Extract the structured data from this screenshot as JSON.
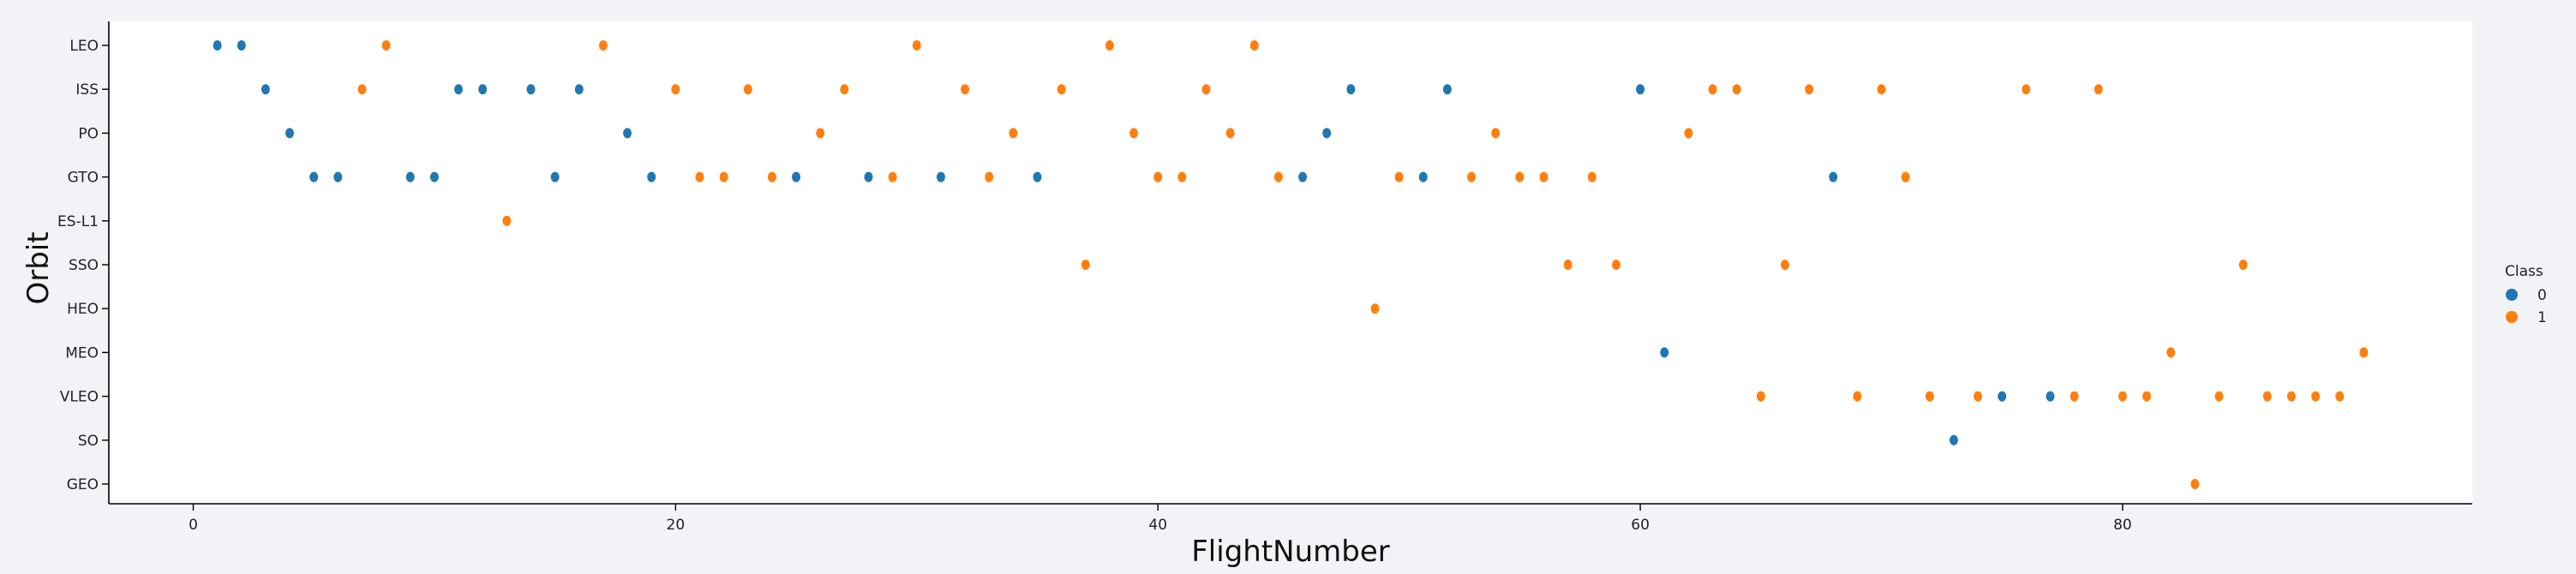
{
  "chart_data": {
    "type": "scatter",
    "title": "",
    "xlabel": "FlightNumber",
    "ylabel": "Orbit",
    "xlim": [
      -3.5,
      94.5
    ],
    "x_ticks": [
      0,
      20,
      40,
      60,
      80
    ],
    "y_categories": [
      "LEO",
      "ISS",
      "PO",
      "GTO",
      "ES-L1",
      "SSO",
      "HEO",
      "MEO",
      "VLEO",
      "SO",
      "GEO"
    ],
    "legend": {
      "title": "Class",
      "placement": "right",
      "entries": [
        {
          "label": "0",
          "color": "#1f77b4"
        },
        {
          "label": "1",
          "color": "#ff7f0e"
        }
      ]
    },
    "grid": false,
    "series": [
      {
        "name": "0",
        "color": "#1f77b4",
        "points": [
          [
            1,
            "LEO"
          ],
          [
            2,
            "LEO"
          ],
          [
            3,
            "ISS"
          ],
          [
            4,
            "PO"
          ],
          [
            5,
            "GTO"
          ],
          [
            6,
            "GTO"
          ],
          [
            9,
            "GTO"
          ],
          [
            10,
            "GTO"
          ],
          [
            11,
            "ISS"
          ],
          [
            12,
            "ISS"
          ],
          [
            14,
            "ISS"
          ],
          [
            15,
            "GTO"
          ],
          [
            16,
            "ISS"
          ],
          [
            18,
            "PO"
          ],
          [
            19,
            "GTO"
          ],
          [
            25,
            "GTO"
          ],
          [
            28,
            "GTO"
          ],
          [
            31,
            "GTO"
          ],
          [
            35,
            "GTO"
          ],
          [
            46,
            "GTO"
          ],
          [
            47,
            "PO"
          ],
          [
            48,
            "ISS"
          ],
          [
            51,
            "GTO"
          ],
          [
            52,
            "ISS"
          ],
          [
            60,
            "ISS"
          ],
          [
            61,
            "MEO"
          ],
          [
            68,
            "GTO"
          ],
          [
            73,
            "SO"
          ],
          [
            75,
            "VLEO"
          ],
          [
            77,
            "VLEO"
          ]
        ]
      },
      {
        "name": "1",
        "color": "#ff7f0e",
        "points": [
          [
            7,
            "ISS"
          ],
          [
            8,
            "LEO"
          ],
          [
            13,
            "ES-L1"
          ],
          [
            17,
            "LEO"
          ],
          [
            20,
            "ISS"
          ],
          [
            21,
            "GTO"
          ],
          [
            22,
            "GTO"
          ],
          [
            23,
            "ISS"
          ],
          [
            24,
            "GTO"
          ],
          [
            26,
            "PO"
          ],
          [
            27,
            "ISS"
          ],
          [
            29,
            "GTO"
          ],
          [
            30,
            "LEO"
          ],
          [
            32,
            "ISS"
          ],
          [
            33,
            "GTO"
          ],
          [
            34,
            "PO"
          ],
          [
            36,
            "ISS"
          ],
          [
            37,
            "SSO"
          ],
          [
            38,
            "LEO"
          ],
          [
            39,
            "PO"
          ],
          [
            40,
            "GTO"
          ],
          [
            41,
            "GTO"
          ],
          [
            42,
            "ISS"
          ],
          [
            43,
            "PO"
          ],
          [
            44,
            "LEO"
          ],
          [
            45,
            "GTO"
          ],
          [
            49,
            "HEO"
          ],
          [
            50,
            "GTO"
          ],
          [
            53,
            "GTO"
          ],
          [
            54,
            "PO"
          ],
          [
            55,
            "GTO"
          ],
          [
            56,
            "GTO"
          ],
          [
            57,
            "SSO"
          ],
          [
            58,
            "GTO"
          ],
          [
            59,
            "SSO"
          ],
          [
            62,
            "PO"
          ],
          [
            63,
            "ISS"
          ],
          [
            64,
            "ISS"
          ],
          [
            65,
            "VLEO"
          ],
          [
            66,
            "SSO"
          ],
          [
            67,
            "ISS"
          ],
          [
            69,
            "VLEO"
          ],
          [
            70,
            "ISS"
          ],
          [
            71,
            "GTO"
          ],
          [
            72,
            "VLEO"
          ],
          [
            74,
            "VLEO"
          ],
          [
            76,
            "ISS"
          ],
          [
            78,
            "VLEO"
          ],
          [
            79,
            "ISS"
          ],
          [
            80,
            "VLEO"
          ],
          [
            81,
            "VLEO"
          ],
          [
            82,
            "MEO"
          ],
          [
            83,
            "GEO"
          ],
          [
            84,
            "VLEO"
          ],
          [
            85,
            "SSO"
          ],
          [
            86,
            "VLEO"
          ],
          [
            87,
            "VLEO"
          ],
          [
            88,
            "VLEO"
          ],
          [
            89,
            "VLEO"
          ],
          [
            90,
            "MEO"
          ]
        ]
      }
    ]
  }
}
